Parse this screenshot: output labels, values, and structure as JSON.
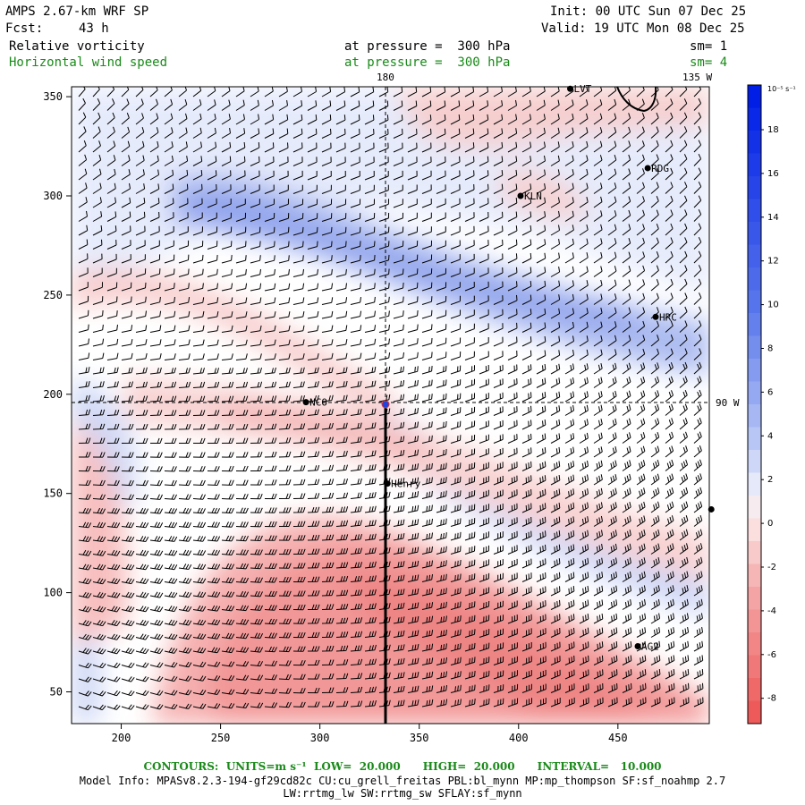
{
  "header": {
    "model": "AMPS 2.67-km WRF SP",
    "fcst_label": "Fcst:",
    "fcst_value": "43 h",
    "init": "Init: 00 UTC Sun 07 Dec 25",
    "valid": "Valid: 19 UTC Mon 08 Dec 25",
    "field1": "Relative vorticity",
    "field1_level": "at pressure =  300 hPa",
    "field1_sm": "sm= 1",
    "field2": "Horizontal wind speed",
    "field2_level": "at pressure =  300 hPa",
    "field2_sm": "sm= 4"
  },
  "map": {
    "meridian_180": "180",
    "meridian_135w": "135 W",
    "meridian_90w": "90 W",
    "x_ticks": [
      "200",
      "250",
      "300",
      "350",
      "400",
      "450"
    ],
    "y_ticks": [
      "50",
      "100",
      "150",
      "200",
      "250",
      "300",
      "350"
    ],
    "stations": [
      {
        "label": "LVT",
        "x": 426,
        "y": 354
      },
      {
        "label": "RDG",
        "x": 465,
        "y": 314
      },
      {
        "label": "KLN",
        "x": 401,
        "y": 300
      },
      {
        "label": "HRC",
        "x": 469,
        "y": 239
      },
      {
        "label": "NCO",
        "x": 293,
        "y": 196
      },
      {
        "label": "Henry",
        "x": 334,
        "y": 155
      },
      {
        "label": "",
        "x": 497,
        "y": 142
      },
      {
        "label": "AG2",
        "x": 460,
        "y": 73
      }
    ],
    "colors": {
      "positive": "#2244dd",
      "negative": "#ee5555",
      "barb": "#000000"
    }
  },
  "colorbar": {
    "unit": "10⁻⁵ s⁻¹",
    "labels": [
      "18",
      "16",
      "14",
      "12",
      "10",
      "8",
      "6",
      "4",
      "2",
      "0",
      "-2",
      "-4",
      "-6",
      "-8"
    ]
  },
  "footer": {
    "contours": "CONTOURS:  UNITS=m s⁻¹  LOW=  20.000      HIGH=  20.000      INTERVAL=   10.000",
    "model_info": "Model Info: MPASv8.2.3-194-gf29cd82c CU:cu_grell_freitas PBL:bl_mynn MP:mp_thompson SF:sf_noahmp 2.7",
    "model_info2": "LW:rrtmg_lw SW:rrtmg_sw SFLAY:sf_mynn"
  }
}
